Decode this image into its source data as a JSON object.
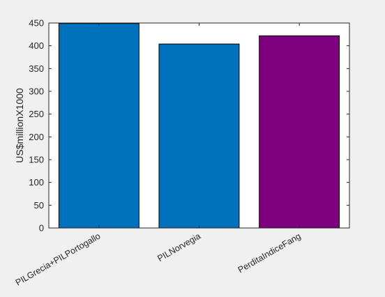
{
  "chart_data": {
    "type": "bar",
    "title": "",
    "xlabel": "",
    "ylabel": "US$millionX1000",
    "categories": [
      "PILGrecia+PILPortogallo",
      "PILNorvegia",
      "PerditaIndiceFang"
    ],
    "values": [
      449,
      404,
      422
    ],
    "ylim": [
      0,
      450
    ],
    "yticks": [
      0,
      50,
      100,
      150,
      200,
      250,
      300,
      350,
      400,
      450
    ],
    "bar_colors": [
      "#0072bd",
      "#0072bd",
      "#7e007e"
    ],
    "grid": false,
    "legend": "none",
    "background": "#f0f0f0",
    "axes_background": "#ffffff"
  }
}
